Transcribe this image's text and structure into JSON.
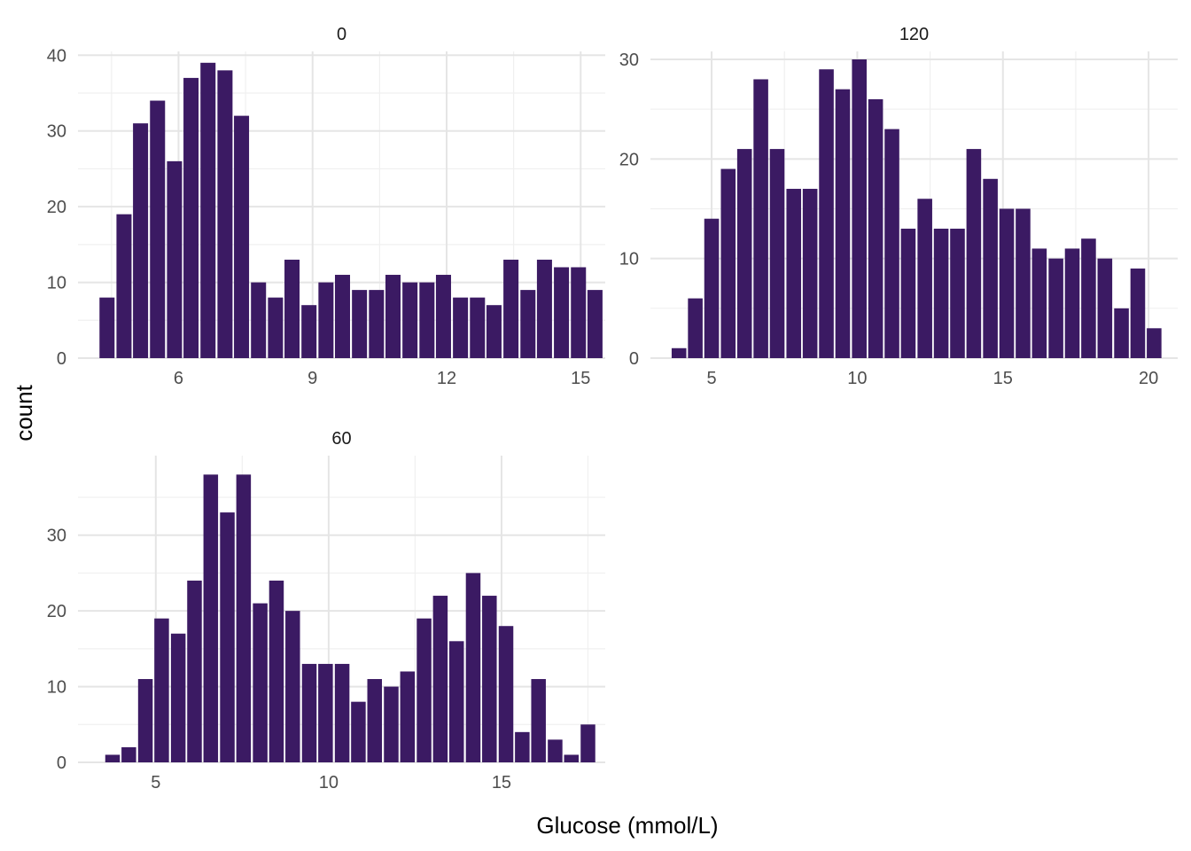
{
  "chart_data": {
    "type": "bar",
    "subtype": "faceted-histogram",
    "xlabel": "Glucose (mmol/L)",
    "ylabel": "count",
    "grid": true,
    "bar_color": "#3b1a63",
    "panels": [
      {
        "strip": "0",
        "xlim": [
          3.75,
          15.55
        ],
        "ylim": [
          0,
          40.5
        ],
        "xticks": [
          6,
          9,
          12,
          15
        ],
        "yticks": [
          0,
          10,
          20,
          30,
          40
        ],
        "bin_width": 0.377,
        "bins": [
          {
            "x": 4.4,
            "count": 8
          },
          {
            "x": 4.78,
            "count": 19
          },
          {
            "x": 5.15,
            "count": 31
          },
          {
            "x": 5.53,
            "count": 34
          },
          {
            "x": 5.91,
            "count": 26
          },
          {
            "x": 6.28,
            "count": 37
          },
          {
            "x": 6.66,
            "count": 39
          },
          {
            "x": 7.04,
            "count": 38
          },
          {
            "x": 7.41,
            "count": 32
          },
          {
            "x": 7.79,
            "count": 10
          },
          {
            "x": 8.17,
            "count": 8
          },
          {
            "x": 8.54,
            "count": 13
          },
          {
            "x": 8.92,
            "count": 7
          },
          {
            "x": 9.3,
            "count": 10
          },
          {
            "x": 9.67,
            "count": 11
          },
          {
            "x": 10.05,
            "count": 9
          },
          {
            "x": 10.43,
            "count": 9
          },
          {
            "x": 10.8,
            "count": 11
          },
          {
            "x": 11.18,
            "count": 10
          },
          {
            "x": 11.56,
            "count": 10
          },
          {
            "x": 11.93,
            "count": 11
          },
          {
            "x": 12.31,
            "count": 8
          },
          {
            "x": 12.69,
            "count": 8
          },
          {
            "x": 13.06,
            "count": 7
          },
          {
            "x": 13.44,
            "count": 13
          },
          {
            "x": 13.82,
            "count": 9
          },
          {
            "x": 14.19,
            "count": 13
          },
          {
            "x": 14.57,
            "count": 12
          },
          {
            "x": 14.95,
            "count": 12
          },
          {
            "x": 15.32,
            "count": 9
          }
        ]
      },
      {
        "strip": "120",
        "xlim": [
          2.9,
          21.0
        ],
        "ylim": [
          0,
          30.8
        ],
        "xticks": [
          5,
          10,
          15,
          20
        ],
        "yticks": [
          0,
          10,
          20,
          30
        ],
        "bin_width": 0.565,
        "bins": [
          {
            "x": 3.88,
            "count": 1
          },
          {
            "x": 4.44,
            "count": 6
          },
          {
            "x": 5.0,
            "count": 14
          },
          {
            "x": 5.57,
            "count": 19
          },
          {
            "x": 6.13,
            "count": 21
          },
          {
            "x": 6.69,
            "count": 28
          },
          {
            "x": 7.25,
            "count": 21
          },
          {
            "x": 7.82,
            "count": 17
          },
          {
            "x": 8.38,
            "count": 17
          },
          {
            "x": 8.94,
            "count": 29
          },
          {
            "x": 9.5,
            "count": 27
          },
          {
            "x": 10.07,
            "count": 30
          },
          {
            "x": 10.63,
            "count": 26
          },
          {
            "x": 11.19,
            "count": 23
          },
          {
            "x": 11.75,
            "count": 13
          },
          {
            "x": 12.32,
            "count": 16
          },
          {
            "x": 12.88,
            "count": 13
          },
          {
            "x": 13.44,
            "count": 13
          },
          {
            "x": 14.0,
            "count": 21
          },
          {
            "x": 14.57,
            "count": 18
          },
          {
            "x": 15.13,
            "count": 15
          },
          {
            "x": 15.69,
            "count": 15
          },
          {
            "x": 16.25,
            "count": 11
          },
          {
            "x": 16.82,
            "count": 10
          },
          {
            "x": 17.38,
            "count": 11
          },
          {
            "x": 17.94,
            "count": 12
          },
          {
            "x": 18.5,
            "count": 10
          },
          {
            "x": 19.07,
            "count": 5
          },
          {
            "x": 19.63,
            "count": 9
          },
          {
            "x": 20.19,
            "count": 3
          }
        ]
      },
      {
        "strip": "60",
        "xlim": [
          2.75,
          18.0
        ],
        "ylim": [
          0,
          40.5
        ],
        "xticks": [
          5,
          10,
          15
        ],
        "yticks": [
          0,
          10,
          20,
          30
        ],
        "bin_width": 0.474,
        "bins": [
          {
            "x": 3.75,
            "count": 1
          },
          {
            "x": 4.22,
            "count": 2
          },
          {
            "x": 4.7,
            "count": 11
          },
          {
            "x": 5.17,
            "count": 19
          },
          {
            "x": 5.65,
            "count": 17
          },
          {
            "x": 6.12,
            "count": 24
          },
          {
            "x": 6.59,
            "count": 38
          },
          {
            "x": 7.07,
            "count": 33
          },
          {
            "x": 7.54,
            "count": 38
          },
          {
            "x": 8.02,
            "count": 21
          },
          {
            "x": 8.49,
            "count": 24
          },
          {
            "x": 8.96,
            "count": 20
          },
          {
            "x": 9.44,
            "count": 13
          },
          {
            "x": 9.91,
            "count": 13
          },
          {
            "x": 10.39,
            "count": 13
          },
          {
            "x": 10.86,
            "count": 8
          },
          {
            "x": 11.33,
            "count": 11
          },
          {
            "x": 11.81,
            "count": 10
          },
          {
            "x": 12.28,
            "count": 12
          },
          {
            "x": 12.76,
            "count": 19
          },
          {
            "x": 13.23,
            "count": 22
          },
          {
            "x": 13.7,
            "count": 16
          },
          {
            "x": 14.18,
            "count": 25
          },
          {
            "x": 14.65,
            "count": 22
          },
          {
            "x": 15.13,
            "count": 18
          },
          {
            "x": 15.6,
            "count": 4
          },
          {
            "x": 16.07,
            "count": 11
          },
          {
            "x": 16.55,
            "count": 3
          },
          {
            "x": 17.02,
            "count": 1
          },
          {
            "x": 17.5,
            "count": 5
          }
        ]
      }
    ]
  }
}
